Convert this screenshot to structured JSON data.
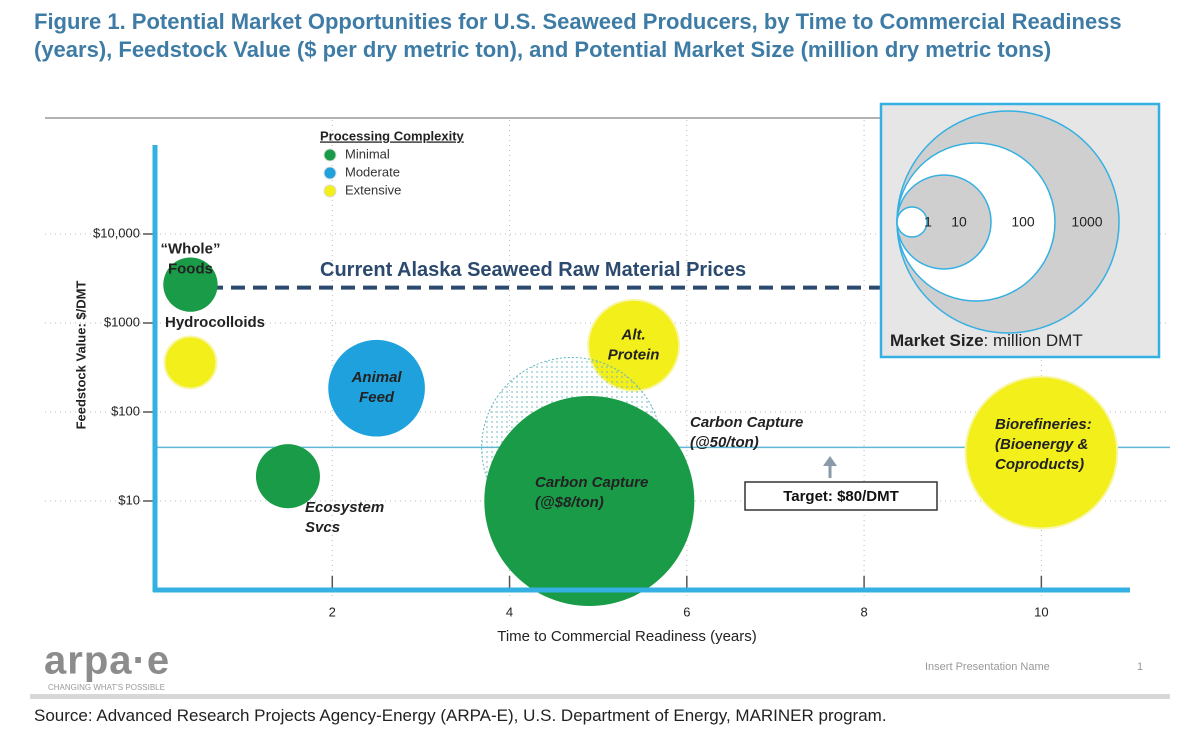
{
  "chart_data": {
    "type": "bubble",
    "title": "Figure 1. Potential Market Opportunities for U.S. Seaweed Producers, by Time to Commercial Readiness (years), Feedstock Value ($ per dry metric ton), and Potential Market Size (million dry metric tons)",
    "xlabel": "Time to Commercial Readiness (years)",
    "ylabel": "Feedstock Value: $/DMT",
    "xlim": [
      0,
      11
    ],
    "ylim": [
      1,
      100000
    ],
    "yscale": "log",
    "xticks": [
      2,
      4,
      6,
      8,
      10
    ],
    "yticks": [
      {
        "value": 10,
        "label": "$10"
      },
      {
        "value": 100,
        "label": "$100"
      },
      {
        "value": 1000,
        "label": "$1000"
      },
      {
        "value": 10000,
        "label": "$10,000"
      }
    ],
    "grid": true,
    "legend": {
      "title": "Processing Complexity",
      "items": [
        {
          "name": "Minimal",
          "color": "#1a9b48"
        },
        {
          "name": "Moderate",
          "color": "#1ea1dc"
        },
        {
          "name": "Extensive",
          "color": "#f2ef1a"
        }
      ]
    },
    "points": [
      {
        "label": [
          "“Whole”",
          "Foods"
        ],
        "x": 0.4,
        "y": 2700,
        "size": 2.4,
        "color": "#1a9b48"
      },
      {
        "label": [
          "Hydrocolloids"
        ],
        "x": 0.4,
        "y": 360,
        "size": 2.2,
        "color": "#f2ef1a"
      },
      {
        "label": [
          "Animal",
          "Feed"
        ],
        "x": 2.5,
        "y": 185,
        "size": 11,
        "color": "#1ea1dc"
      },
      {
        "label": [
          "Ecosystem",
          "Svcs"
        ],
        "x": 1.5,
        "y": 19,
        "size": 3.4,
        "color": "#1a9b48"
      },
      {
        "label": [
          "Alt.",
          "Protein"
        ],
        "x": 5.4,
        "y": 560,
        "size": 9,
        "color": "#f2ef1a"
      },
      {
        "label": [
          "Carbon Capture",
          "(@50/ton)"
        ],
        "x": 4.7,
        "y": 40,
        "size": 220,
        "color": "#5fb8c0",
        "pattern": "dotted"
      },
      {
        "label": [
          "Carbon Capture",
          "(@$8/ton)"
        ],
        "x": 4.9,
        "y": 10,
        "size": 650,
        "color": "#1a9b48"
      },
      {
        "label": [
          "Biorefineries:",
          "(Bioenergy &",
          "Coproducts)"
        ],
        "x": 10,
        "y": 35,
        "size": 80,
        "color": "#f2ef1a"
      }
    ],
    "reference_lines": [
      {
        "value": 2500,
        "label": "Current Alaska Seaweed Raw Material Prices",
        "color": "#2c4a6e",
        "style": "dashed"
      },
      {
        "value": 40,
        "color": "#5fb8d8",
        "style": "solid"
      }
    ],
    "annotation": "Target: $80/DMT",
    "size_legend": {
      "title": "Market Size",
      "unit": ": million DMT",
      "sizes": [
        1,
        10,
        100,
        1000
      ]
    }
  },
  "source": "Source: Advanced Research Projects Agency-Energy (ARPA-E), U.S. Department of Energy, MARINER program.",
  "logo": {
    "name": "arpa·e",
    "tagline": "CHANGING WHAT'S POSSIBLE"
  },
  "footer": {
    "text": "Insert Presentation Name",
    "page": "1"
  }
}
